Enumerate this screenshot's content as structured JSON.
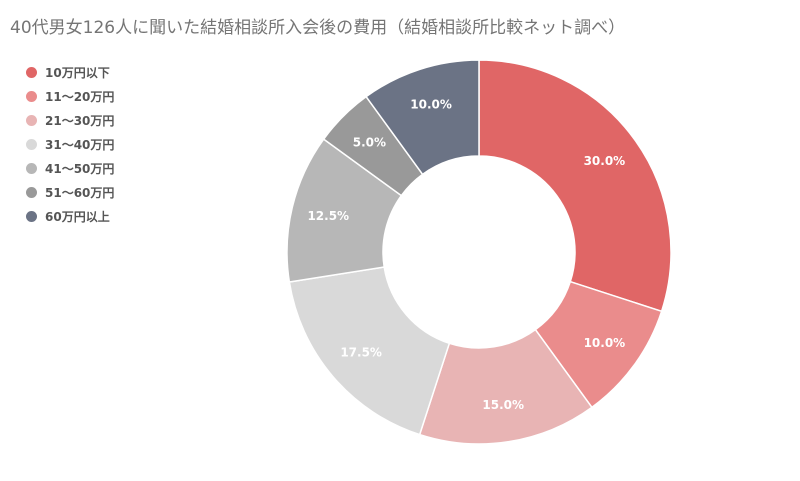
{
  "chart_data": {
    "type": "pie",
    "title": "40代男女126人に聞いた結婚相談所入会後の費用（結婚相談所比較ネット調べ）",
    "legend_position": "left",
    "categories": [
      "10万円以下",
      "11～20万円",
      "21～30万円",
      "31～40万円",
      "41～50万円",
      "51～60万円",
      "60万円以上"
    ],
    "values": [
      30.0,
      10.0,
      15.0,
      17.5,
      12.5,
      5.0,
      10.0
    ],
    "value_labels": [
      "30.0%",
      "10.0%",
      "15.0%",
      "17.5%",
      "12.5%",
      "5.0%",
      "10.0%"
    ],
    "colors": [
      "#E06666",
      "#EA8C8C",
      "#E8B4B4",
      "#D9D9D9",
      "#B7B7B7",
      "#999999",
      "#6B7385"
    ]
  }
}
